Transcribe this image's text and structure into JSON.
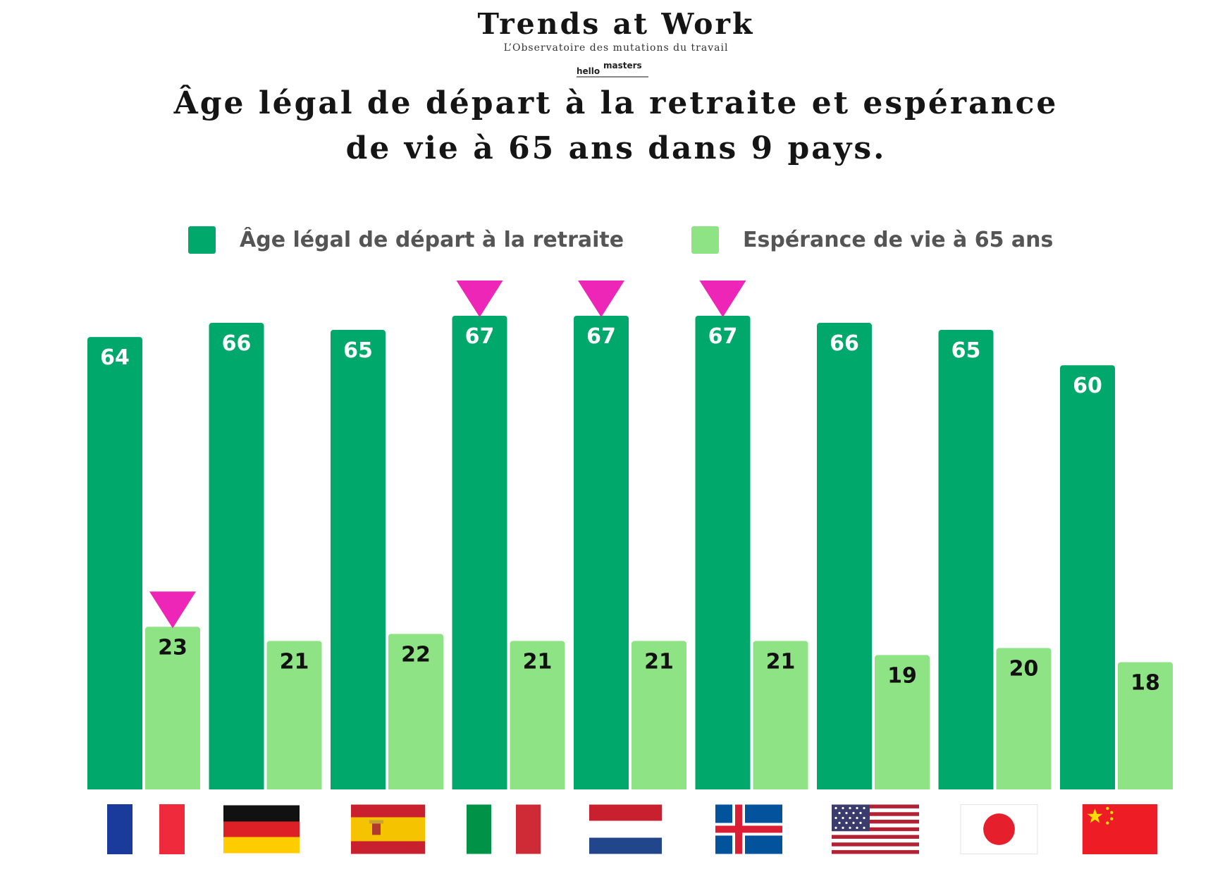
{
  "brand": {
    "title": "Trends at Work",
    "subtitle": "L’Observatoire des mutations du travail",
    "logo_hello": "hello",
    "logo_masters": "masters"
  },
  "colors": {
    "primary": "#00a86b",
    "secondary": "#8ee384",
    "highlight": "#ee26b7",
    "text": "#151515",
    "legend_text": "#555555"
  },
  "chart_data": {
    "type": "bar",
    "title": "Âge légal de départ à la retraite et espérance de vie à 65 ans dans 9 pays.",
    "title_lines": [
      "Âge légal de départ à la retraite et espérance",
      "de vie à 65 ans dans 9 pays."
    ],
    "legend_position": "top",
    "grid": false,
    "categories": [
      "France",
      "Allemagne",
      "Espagne",
      "Italie",
      "Pays-Bas",
      "Islande",
      "États-Unis",
      "Japon",
      "Chine"
    ],
    "category_labels_shown_as": "flags",
    "series": [
      {
        "name": "Âge légal de départ à la retraite",
        "values": [
          64,
          66,
          65,
          67,
          67,
          67,
          66,
          65,
          60
        ],
        "color": "#00a86b",
        "highlighted": [
          false,
          false,
          false,
          true,
          true,
          true,
          false,
          false,
          false
        ]
      },
      {
        "name": "Espérance de vie à 65 ans",
        "values": [
          23,
          21,
          22,
          21,
          21,
          21,
          19,
          20,
          18
        ],
        "color": "#8ee384",
        "highlighted": [
          true,
          false,
          false,
          false,
          false,
          false,
          false,
          false,
          false
        ]
      }
    ],
    "ylim": [
      0,
      67
    ]
  },
  "flags": [
    {
      "country": "France",
      "icon": "flag-france-icon"
    },
    {
      "country": "Allemagne",
      "icon": "flag-germany-icon"
    },
    {
      "country": "Espagne",
      "icon": "flag-spain-icon"
    },
    {
      "country": "Italie",
      "icon": "flag-italy-icon"
    },
    {
      "country": "Pays-Bas",
      "icon": "flag-netherlands-icon"
    },
    {
      "country": "Islande",
      "icon": "flag-iceland-icon"
    },
    {
      "country": "États-Unis",
      "icon": "flag-usa-icon"
    },
    {
      "country": "Japon",
      "icon": "flag-japan-icon"
    },
    {
      "country": "Chine",
      "icon": "flag-china-icon"
    }
  ]
}
